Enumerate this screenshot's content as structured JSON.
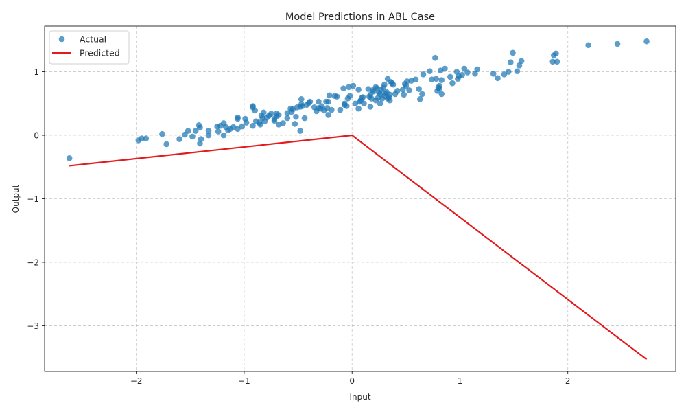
{
  "chart_data": {
    "type": "scatter",
    "title": "Model Predictions in ABL Case",
    "xlabel": "Input",
    "ylabel": "Output",
    "xlim": [
      -2.85,
      3.0
    ],
    "ylim": [
      -3.72,
      1.72
    ],
    "xticks": [
      -2,
      -1,
      0,
      1,
      2
    ],
    "xtick_labels": [
      "−2",
      "−1",
      "0",
      "1",
      "2"
    ],
    "yticks": [
      -3,
      -2,
      -1,
      0,
      1
    ],
    "ytick_labels": [
      "−3",
      "−2",
      "−1",
      "0",
      "1"
    ],
    "grid": true,
    "legend_position": "top-left",
    "series": [
      {
        "name": "Actual",
        "kind": "scatter",
        "color": "#1f77b4",
        "points": [
          [
            -2.62,
            -0.36
          ],
          [
            -1.98,
            -0.08
          ],
          [
            -1.95,
            -0.05
          ],
          [
            -1.91,
            -0.05
          ],
          [
            -1.76,
            0.02
          ],
          [
            -1.72,
            -0.14
          ],
          [
            -1.6,
            -0.06
          ],
          [
            -1.55,
            0.01
          ],
          [
            -1.52,
            0.07
          ],
          [
            -1.48,
            -0.02
          ],
          [
            -1.45,
            0.07
          ],
          [
            -1.42,
            0.16
          ],
          [
            -1.41,
            0.12
          ],
          [
            -1.41,
            -0.13
          ],
          [
            -1.4,
            -0.06
          ],
          [
            -1.33,
            0.0
          ],
          [
            -1.33,
            0.07
          ],
          [
            -1.25,
            0.14
          ],
          [
            -1.24,
            0.06
          ],
          [
            -1.22,
            0.15
          ],
          [
            -1.19,
            0.19
          ],
          [
            -1.19,
            0.0
          ],
          [
            -1.17,
            0.13
          ],
          [
            -1.15,
            0.08
          ],
          [
            -1.13,
            0.1
          ],
          [
            -1.1,
            0.13
          ],
          [
            -1.06,
            0.26
          ],
          [
            -1.06,
            0.28
          ],
          [
            -1.06,
            0.1
          ],
          [
            -1.02,
            0.14
          ],
          [
            -0.99,
            0.26
          ],
          [
            -0.98,
            0.2
          ],
          [
            -0.92,
            0.46
          ],
          [
            -0.92,
            0.44
          ],
          [
            -0.92,
            0.15
          ],
          [
            -0.9,
            0.39
          ],
          [
            -0.89,
            0.22
          ],
          [
            -0.86,
            0.2
          ],
          [
            -0.85,
            0.17
          ],
          [
            -0.84,
            0.31
          ],
          [
            -0.83,
            0.27
          ],
          [
            -0.82,
            0.36
          ],
          [
            -0.81,
            0.22
          ],
          [
            -0.79,
            0.28
          ],
          [
            -0.77,
            0.31
          ],
          [
            -0.75,
            0.34
          ],
          [
            -0.72,
            0.26
          ],
          [
            -0.72,
            0.23
          ],
          [
            -0.7,
            0.34
          ],
          [
            -0.7,
            0.3
          ],
          [
            -0.68,
            0.32
          ],
          [
            -0.68,
            0.17
          ],
          [
            -0.64,
            0.19
          ],
          [
            -0.6,
            0.27
          ],
          [
            -0.6,
            0.35
          ],
          [
            -0.57,
            0.42
          ],
          [
            -0.56,
            0.37
          ],
          [
            -0.55,
            0.41
          ],
          [
            -0.53,
            0.18
          ],
          [
            -0.52,
            0.29
          ],
          [
            -0.51,
            0.44
          ],
          [
            -0.48,
            0.07
          ],
          [
            -0.48,
            0.45
          ],
          [
            -0.47,
            0.49
          ],
          [
            -0.47,
            0.57
          ],
          [
            -0.46,
            0.46
          ],
          [
            -0.44,
            0.27
          ],
          [
            -0.42,
            0.48
          ],
          [
            -0.4,
            0.51
          ],
          [
            -0.39,
            0.53
          ],
          [
            -0.35,
            0.44
          ],
          [
            -0.33,
            0.38
          ],
          [
            -0.31,
            0.53
          ],
          [
            -0.31,
            0.43
          ],
          [
            -0.29,
            0.42
          ],
          [
            -0.28,
            0.46
          ],
          [
            -0.26,
            0.39
          ],
          [
            -0.24,
            0.53
          ],
          [
            -0.23,
            0.43
          ],
          [
            -0.22,
            0.53
          ],
          [
            -0.22,
            0.32
          ],
          [
            -0.21,
            0.63
          ],
          [
            -0.19,
            0.4
          ],
          [
            -0.16,
            0.62
          ],
          [
            -0.14,
            0.61
          ],
          [
            -0.11,
            0.4
          ],
          [
            -0.08,
            0.74
          ],
          [
            -0.07,
            0.48
          ],
          [
            -0.07,
            0.5
          ],
          [
            -0.05,
            0.46
          ],
          [
            -0.04,
            0.58
          ],
          [
            -0.03,
            0.76
          ],
          [
            -0.02,
            0.62
          ],
          [
            0.01,
            0.78
          ],
          [
            0.03,
            0.5
          ],
          [
            0.06,
            0.72
          ],
          [
            0.06,
            0.42
          ],
          [
            0.07,
            0.53
          ],
          [
            0.08,
            0.55
          ],
          [
            0.09,
            0.59
          ],
          [
            0.1,
            0.6
          ],
          [
            0.11,
            0.5
          ],
          [
            0.15,
            0.73
          ],
          [
            0.16,
            0.61
          ],
          [
            0.17,
            0.45
          ],
          [
            0.17,
            0.64
          ],
          [
            0.18,
            0.58
          ],
          [
            0.19,
            0.71
          ],
          [
            0.2,
            0.69
          ],
          [
            0.22,
            0.55
          ],
          [
            0.22,
            0.76
          ],
          [
            0.23,
            0.74
          ],
          [
            0.24,
            0.59
          ],
          [
            0.25,
            0.67
          ],
          [
            0.26,
            0.5
          ],
          [
            0.26,
            0.65
          ],
          [
            0.27,
            0.72
          ],
          [
            0.28,
            0.58
          ],
          [
            0.29,
            0.75
          ],
          [
            0.3,
            0.62
          ],
          [
            0.3,
            0.8
          ],
          [
            0.31,
            0.66
          ],
          [
            0.32,
            0.68
          ],
          [
            0.33,
            0.58
          ],
          [
            0.33,
            0.89
          ],
          [
            0.34,
            0.6
          ],
          [
            0.35,
            0.55
          ],
          [
            0.35,
            0.64
          ],
          [
            0.36,
            0.84
          ],
          [
            0.37,
            0.82
          ],
          [
            0.38,
            0.8
          ],
          [
            0.4,
            0.65
          ],
          [
            0.42,
            0.7
          ],
          [
            0.47,
            0.72
          ],
          [
            0.48,
            0.64
          ],
          [
            0.49,
            0.81
          ],
          [
            0.5,
            0.78
          ],
          [
            0.51,
            0.85
          ],
          [
            0.53,
            0.71
          ],
          [
            0.55,
            0.86
          ],
          [
            0.59,
            0.88
          ],
          [
            0.62,
            0.73
          ],
          [
            0.63,
            0.57
          ],
          [
            0.65,
            0.65
          ],
          [
            0.66,
            0.96
          ],
          [
            0.72,
            1.01
          ],
          [
            0.74,
            0.88
          ],
          [
            0.77,
            1.22
          ],
          [
            0.78,
            0.89
          ],
          [
            0.79,
            0.7
          ],
          [
            0.8,
            0.75
          ],
          [
            0.81,
            0.74
          ],
          [
            0.81,
            0.78
          ],
          [
            0.82,
            1.02
          ],
          [
            0.83,
            0.65
          ],
          [
            0.83,
            0.87
          ],
          [
            0.86,
            1.05
          ],
          [
            0.91,
            0.92
          ],
          [
            0.93,
            0.82
          ],
          [
            0.97,
            1.0
          ],
          [
            0.98,
            0.89
          ],
          [
            0.99,
            0.93
          ],
          [
            1.02,
            0.95
          ],
          [
            1.04,
            1.05
          ],
          [
            1.07,
            0.99
          ],
          [
            1.14,
            0.97
          ],
          [
            1.16,
            1.04
          ],
          [
            1.31,
            0.97
          ],
          [
            1.35,
            0.9
          ],
          [
            1.41,
            0.96
          ],
          [
            1.45,
            1.0
          ],
          [
            1.47,
            1.15
          ],
          [
            1.49,
            1.3
          ],
          [
            1.53,
            1.01
          ],
          [
            1.55,
            1.1
          ],
          [
            1.57,
            1.17
          ],
          [
            1.86,
            1.16
          ],
          [
            1.87,
            1.26
          ],
          [
            1.89,
            1.29
          ],
          [
            1.9,
            1.16
          ],
          [
            2.19,
            1.42
          ],
          [
            2.46,
            1.44
          ],
          [
            2.73,
            1.48
          ]
        ]
      },
      {
        "name": "Predicted",
        "kind": "line",
        "color": "#e41a1c",
        "points": [
          [
            -2.62,
            -0.48
          ],
          [
            0.0,
            0.0
          ],
          [
            2.73,
            -3.53
          ]
        ]
      }
    ]
  }
}
